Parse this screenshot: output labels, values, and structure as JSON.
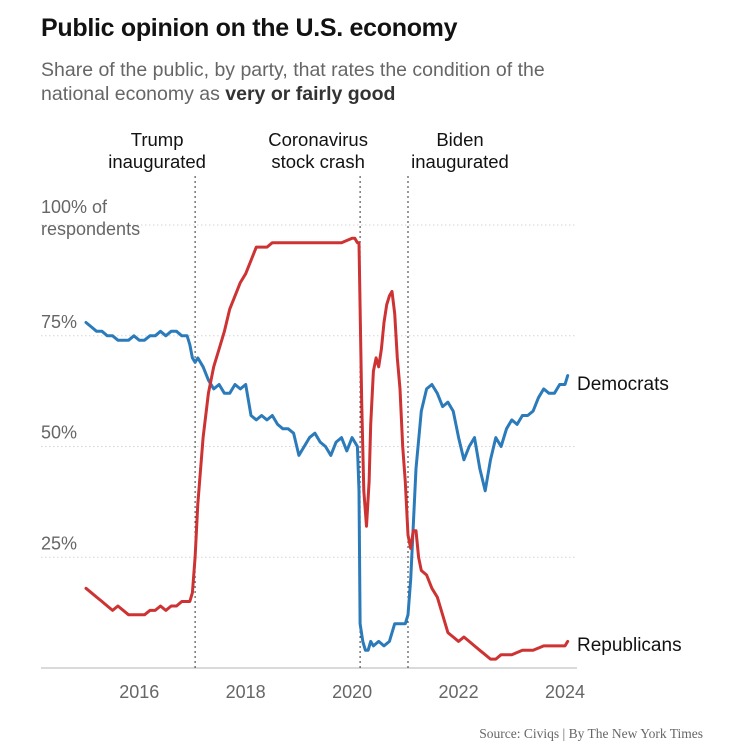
{
  "header": {
    "title": "Public opinion on the U.S. economy",
    "subtitle_prefix": "Share of the public, by party, that rates the condition of the national economy as ",
    "subtitle_emphasis": "very or fairly good"
  },
  "footer": {
    "source": "Source: Civiqs | By The New York Times"
  },
  "chart_data": {
    "type": "line",
    "title": "Public opinion on the U.S. economy",
    "xlabel": "",
    "ylabel": "100% of respondents",
    "xlim": [
      2014.8,
      2024.25
    ],
    "ylim": [
      0,
      100
    ],
    "x_ticks": [
      {
        "value": 2016,
        "label": "2016"
      },
      {
        "value": 2018,
        "label": "2018"
      },
      {
        "value": 2020,
        "label": "2020"
      },
      {
        "value": 2022,
        "label": "2022"
      },
      {
        "value": 2024,
        "label": "2024"
      }
    ],
    "y_ticks": [
      {
        "value": 25,
        "label": "25%"
      },
      {
        "value": 50,
        "label": "50%"
      },
      {
        "value": 75,
        "label": "75%"
      },
      {
        "value": 100,
        "label": "100% of respondents"
      }
    ],
    "annotations": [
      {
        "x": 2017.05,
        "lines": [
          "Trump",
          "inaugurated"
        ]
      },
      {
        "x": 2020.15,
        "lines": [
          "Coronavirus",
          "stock crash"
        ]
      },
      {
        "x": 2021.05,
        "lines": [
          "Biden",
          "inaugurated"
        ]
      }
    ],
    "colors": {
      "Democrats": "#2b7bba",
      "Republicans": "#cd3333",
      "grid": "#d6d6d6",
      "axis_text": "#666666"
    },
    "series": [
      {
        "name": "Democrats",
        "label": "Democrats",
        "x": [
          2015.0,
          2015.1,
          2015.2,
          2015.3,
          2015.4,
          2015.5,
          2015.6,
          2015.7,
          2015.8,
          2015.9,
          2016.0,
          2016.1,
          2016.2,
          2016.3,
          2016.4,
          2016.5,
          2016.6,
          2016.7,
          2016.8,
          2016.9,
          2016.95,
          2017.0,
          2017.05,
          2017.1,
          2017.2,
          2017.3,
          2017.4,
          2017.5,
          2017.6,
          2017.7,
          2017.8,
          2017.9,
          2018.0,
          2018.1,
          2018.2,
          2018.3,
          2018.4,
          2018.5,
          2018.6,
          2018.7,
          2018.8,
          2018.9,
          2019.0,
          2019.1,
          2019.2,
          2019.3,
          2019.4,
          2019.5,
          2019.6,
          2019.7,
          2019.8,
          2019.9,
          2020.0,
          2020.05,
          2020.1,
          2020.13,
          2020.15,
          2020.2,
          2020.25,
          2020.3,
          2020.35,
          2020.4,
          2020.5,
          2020.6,
          2020.7,
          2020.8,
          2020.9,
          2021.0,
          2021.05,
          2021.1,
          2021.2,
          2021.3,
          2021.4,
          2021.5,
          2021.6,
          2021.7,
          2021.8,
          2021.9,
          2022.0,
          2022.1,
          2022.2,
          2022.3,
          2022.4,
          2022.5,
          2022.6,
          2022.7,
          2022.8,
          2022.9,
          2023.0,
          2023.1,
          2023.2,
          2023.3,
          2023.4,
          2023.5,
          2023.6,
          2023.7,
          2023.8,
          2023.9,
          2024.0,
          2024.05
        ],
        "values": [
          78,
          77,
          76,
          76,
          75,
          75,
          74,
          74,
          74,
          75,
          74,
          74,
          75,
          75,
          76,
          75,
          76,
          76,
          75,
          75,
          73,
          70,
          69,
          70,
          68,
          65,
          63,
          64,
          62,
          62,
          64,
          63,
          64,
          57,
          56,
          57,
          56,
          57,
          55,
          54,
          54,
          53,
          48,
          50,
          52,
          53,
          51,
          50,
          48,
          51,
          52,
          49,
          52,
          51,
          50,
          40,
          10,
          6,
          4,
          4,
          6,
          5,
          6,
          5,
          6,
          10,
          10,
          10,
          12,
          20,
          45,
          58,
          63,
          64,
          62,
          59,
          60,
          58,
          52,
          47,
          50,
          52,
          45,
          40,
          47,
          52,
          50,
          54,
          56,
          55,
          57,
          57,
          58,
          61,
          63,
          62,
          62,
          64,
          64,
          66
        ]
      },
      {
        "name": "Republicans",
        "label": "Republicans",
        "x": [
          2015.0,
          2015.1,
          2015.2,
          2015.3,
          2015.4,
          2015.5,
          2015.6,
          2015.7,
          2015.8,
          2015.9,
          2016.0,
          2016.1,
          2016.2,
          2016.3,
          2016.4,
          2016.5,
          2016.6,
          2016.7,
          2016.8,
          2016.9,
          2016.95,
          2017.0,
          2017.05,
          2017.1,
          2017.2,
          2017.3,
          2017.4,
          2017.5,
          2017.6,
          2017.7,
          2017.8,
          2017.9,
          2018.0,
          2018.1,
          2018.2,
          2018.3,
          2018.4,
          2018.5,
          2018.6,
          2018.7,
          2018.8,
          2018.9,
          2019.0,
          2019.2,
          2019.4,
          2019.6,
          2019.8,
          2020.0,
          2020.05,
          2020.1,
          2020.13,
          2020.18,
          2020.22,
          2020.27,
          2020.32,
          2020.35,
          2020.4,
          2020.45,
          2020.5,
          2020.55,
          2020.6,
          2020.65,
          2020.7,
          2020.75,
          2020.8,
          2020.85,
          2020.9,
          2020.95,
          2021.0,
          2021.05,
          2021.1,
          2021.15,
          2021.2,
          2021.25,
          2021.3,
          2021.4,
          2021.5,
          2021.6,
          2021.7,
          2021.8,
          2021.9,
          2022.0,
          2022.1,
          2022.2,
          2022.3,
          2022.4,
          2022.5,
          2022.6,
          2022.7,
          2022.8,
          2022.9,
          2023.0,
          2023.2,
          2023.4,
          2023.6,
          2023.8,
          2024.0,
          2024.05
        ],
        "values": [
          18,
          17,
          16,
          15,
          14,
          13,
          14,
          13,
          12,
          12,
          12,
          12,
          13,
          13,
          14,
          13,
          14,
          14,
          15,
          15,
          15,
          17,
          25,
          37,
          52,
          62,
          68,
          72,
          76,
          81,
          84,
          87,
          89,
          92,
          95,
          95,
          95,
          96,
          96,
          96,
          96,
          96,
          96,
          96,
          96,
          96,
          96,
          97,
          97,
          96,
          96,
          60,
          40,
          32,
          42,
          55,
          67,
          70,
          68,
          72,
          78,
          82,
          84,
          85,
          80,
          70,
          63,
          50,
          42,
          30,
          27,
          31,
          31,
          25,
          22,
          21,
          18,
          16,
          12,
          8,
          7,
          6,
          7,
          6,
          5,
          4,
          3,
          2,
          2,
          3,
          3,
          3,
          4,
          4,
          5,
          5,
          5,
          6
        ]
      }
    ]
  }
}
